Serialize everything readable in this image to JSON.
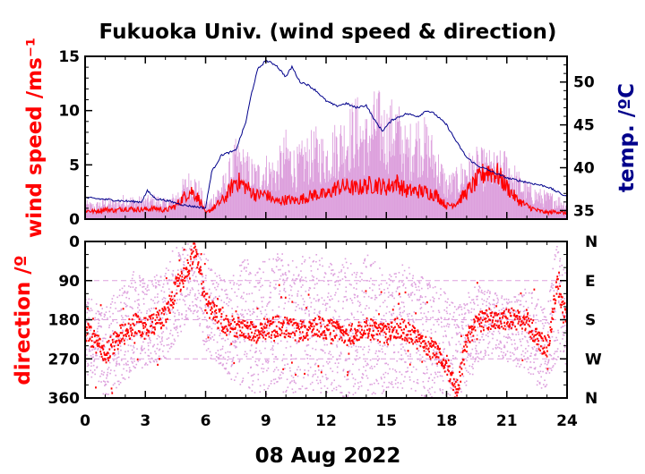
{
  "colors": {
    "wind": "#ff0000",
    "gust": "#dda0dd",
    "temp": "#00008b",
    "axis": "#000000",
    "grid": "#dda0dd"
  },
  "chart_data": [
    {
      "type": "line",
      "title": "Fukuoka Univ. (wind speed & direction)",
      "xlabel": "08 Aug 2022",
      "ylabel": "wind speed /ms⁻¹",
      "ylabel_right": "temp. /ºC",
      "xlim": [
        0,
        24
      ],
      "ylim": [
        0,
        15
      ],
      "ylim_right": [
        34,
        53
      ],
      "x_ticks": [
        0,
        3,
        6,
        9,
        12,
        15,
        18,
        21,
        24
      ],
      "y_ticks": [
        0,
        5,
        10,
        15
      ],
      "y_right_ticks": [
        35,
        40,
        45,
        50
      ],
      "series": [
        {
          "role": "wind_mean",
          "axis": "left",
          "x": [
            0,
            0.5,
            1,
            1.5,
            2,
            2.5,
            3,
            3.5,
            4,
            4.5,
            5,
            5.3,
            5.7,
            6,
            6.5,
            7,
            7.5,
            8,
            8.5,
            9,
            9.5,
            10,
            10.5,
            11,
            11.5,
            12,
            12.5,
            13,
            13.5,
            14,
            14.5,
            15,
            15.5,
            16,
            16.5,
            17,
            17.5,
            18,
            18.5,
            19,
            19.5,
            20,
            20.5,
            21,
            21.5,
            22,
            22.5,
            23,
            23.5,
            24
          ],
          "y": [
            0.8,
            0.7,
            0.9,
            0.8,
            1.0,
            0.9,
            0.9,
            1.0,
            0.8,
            1.2,
            2.2,
            2.6,
            1.8,
            0.5,
            1.2,
            2.0,
            3.6,
            3.0,
            2.2,
            2.3,
            1.6,
            1.8,
            1.7,
            2.0,
            2.3,
            2.2,
            2.9,
            3.0,
            2.8,
            3.1,
            3.2,
            2.9,
            3.4,
            2.6,
            2.6,
            2.5,
            2.2,
            1.2,
            1.5,
            2.5,
            3.5,
            4.5,
            4.2,
            3.0,
            1.8,
            1.2,
            0.8,
            0.6,
            0.7,
            0.5
          ]
        },
        {
          "role": "wind_gust",
          "axis": "left",
          "x": [
            0,
            0.5,
            1,
            1.5,
            2,
            2.5,
            3,
            3.5,
            4,
            4.5,
            5,
            5.3,
            5.7,
            6,
            6.5,
            7,
            7.5,
            8,
            8.5,
            9,
            9.5,
            10,
            10.5,
            11,
            11.5,
            12,
            12.5,
            13,
            13.5,
            14,
            14.5,
            15,
            15.5,
            16,
            16.5,
            17,
            17.5,
            18,
            18.5,
            19,
            19.5,
            20,
            20.5,
            21,
            21.5,
            22,
            22.5,
            23,
            23.5,
            24
          ],
          "y": [
            1.5,
            1.3,
            1.8,
            1.6,
            2.0,
            1.8,
            1.8,
            2.0,
            1.6,
            2.2,
            3.5,
            4.0,
            3.0,
            1.2,
            2.5,
            3.8,
            6.2,
            5.5,
            4.5,
            5.2,
            4.8,
            7.0,
            5.5,
            6.5,
            7.2,
            6.5,
            7.8,
            8.5,
            9.8,
            8.2,
            10.5,
            9.0,
            9.8,
            7.0,
            8.5,
            7.8,
            6.0,
            3.5,
            4.0,
            5.2,
            5.6,
            5.5,
            5.2,
            5.6,
            4.0,
            3.0,
            2.5,
            2.2,
            2.0,
            1.5
          ]
        },
        {
          "role": "temperature",
          "axis": "right",
          "x": [
            0,
            1,
            2,
            2.8,
            3.1,
            3.5,
            4,
            5,
            6,
            6.3,
            6.8,
            7.5,
            8,
            8.3,
            8.6,
            9,
            9.5,
            10,
            10.3,
            10.7,
            11,
            11.5,
            12,
            12.5,
            13,
            13.5,
            14,
            14.4,
            14.8,
            15.3,
            16,
            16.6,
            17,
            17.4,
            18,
            18.5,
            19,
            19.5,
            20,
            21,
            22,
            23,
            24
          ],
          "y": [
            36.5,
            36.3,
            36.1,
            36.0,
            37.3,
            36.4,
            36.2,
            35.6,
            35.3,
            39.5,
            41.5,
            42.0,
            45.3,
            48.8,
            51.5,
            52.5,
            52.0,
            50.6,
            51.8,
            50.0,
            49.8,
            49.0,
            47.8,
            47.2,
            47.5,
            47.0,
            47.3,
            45.6,
            44.3,
            45.6,
            46.3,
            46.0,
            46.7,
            46.3,
            45.0,
            43.0,
            41.2,
            40.3,
            39.8,
            38.8,
            38.3,
            37.8,
            36.6
          ]
        }
      ]
    },
    {
      "type": "scatter",
      "xlabel": "08 Aug 2022",
      "ylabel": "direction /º",
      "xlim": [
        0,
        24
      ],
      "ylim": [
        0,
        360
      ],
      "y_ticks": [
        0,
        90,
        180,
        270,
        360
      ],
      "y_right_labels": [
        "N",
        "E",
        "S",
        "W",
        "N"
      ],
      "grid": true,
      "series": [
        {
          "role": "direction_mean",
          "x": [
            0,
            0.5,
            1,
            1.5,
            2,
            2.5,
            3,
            3.5,
            4,
            4.5,
            5,
            5.5,
            6,
            6.5,
            7,
            7.5,
            8,
            8.5,
            9,
            9.5,
            10,
            10.5,
            11,
            11.5,
            12,
            12.5,
            13,
            13.5,
            14,
            14.5,
            15,
            15.5,
            16,
            16.5,
            17,
            17.5,
            18,
            18.5,
            19,
            19.5,
            20,
            20.5,
            21,
            21.5,
            22,
            22.5,
            23,
            23.5,
            24
          ],
          "y": [
            200,
            230,
            260,
            230,
            210,
            190,
            200,
            190,
            170,
            110,
            70,
            20,
            140,
            170,
            190,
            200,
            200,
            210,
            200,
            195,
            200,
            205,
            210,
            195,
            200,
            205,
            215,
            210,
            200,
            205,
            215,
            200,
            205,
            225,
            245,
            250,
            280,
            350,
            230,
            185,
            180,
            180,
            180,
            175,
            180,
            220,
            250,
            100,
            180
          ]
        },
        {
          "role": "direction_samples",
          "x": [
            0,
            0.5,
            1,
            1.5,
            2,
            2.5,
            3,
            3.5,
            4,
            4.5,
            5,
            5.5,
            6,
            6.5,
            7,
            7.5,
            8,
            8.5,
            9,
            9.5,
            10,
            10.5,
            11,
            11.5,
            12,
            12.5,
            13,
            13.5,
            14,
            14.5,
            15,
            15.5,
            16,
            16.5,
            17,
            17.5,
            18,
            18.5,
            19,
            19.5,
            20,
            20.5,
            21,
            21.5,
            22,
            22.5,
            23,
            23.5,
            24
          ],
          "y_min": [
            120,
            140,
            150,
            120,
            100,
            60,
            90,
            80,
            50,
            10,
            0,
            0,
            30,
            70,
            90,
            60,
            40,
            50,
            40,
            30,
            20,
            40,
            30,
            20,
            50,
            30,
            40,
            60,
            20,
            40,
            80,
            60,
            50,
            70,
            90,
            100,
            120,
            150,
            120,
            100,
            110,
            120,
            130,
            120,
            100,
            130,
            150,
            0,
            80
          ],
          "y_max": [
            300,
            330,
            360,
            340,
            320,
            300,
            290,
            280,
            270,
            230,
            200,
            160,
            260,
            280,
            300,
            330,
            340,
            350,
            360,
            340,
            350,
            360,
            350,
            340,
            360,
            350,
            360,
            350,
            340,
            360,
            350,
            340,
            360,
            350,
            360,
            360,
            360,
            360,
            330,
            290,
            260,
            270,
            280,
            290,
            300,
            330,
            350,
            280,
            300
          ]
        }
      ]
    }
  ]
}
